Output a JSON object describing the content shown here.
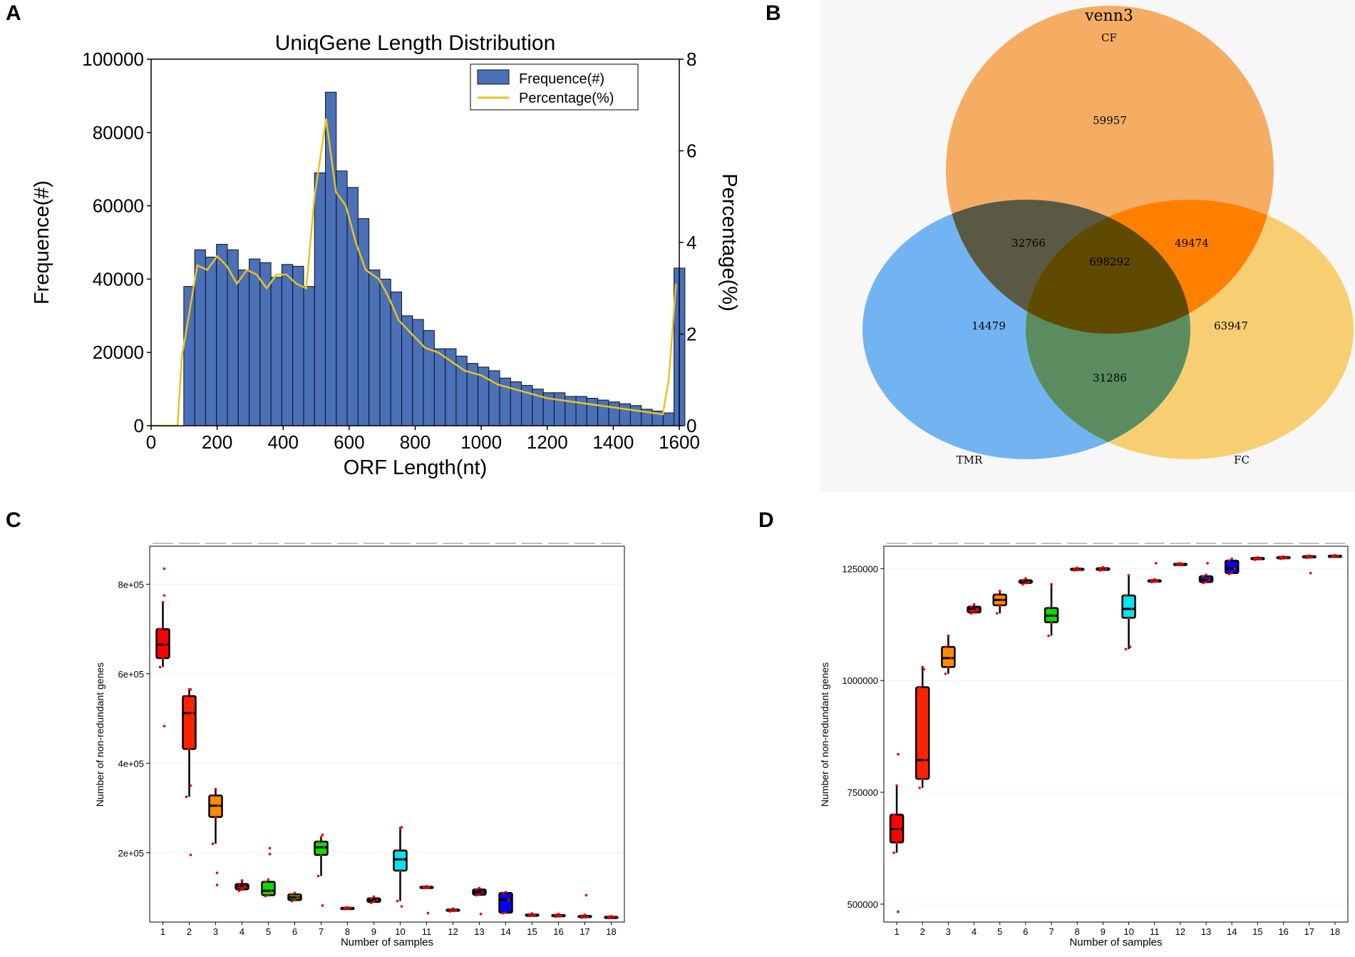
{
  "panels": {
    "A": "A",
    "B": "B",
    "C": "C",
    "D": "D"
  },
  "chart_data": [
    {
      "id": "A",
      "type": "bar",
      "title": "UniqGene Length Distribution",
      "xlabel": "ORF Length(nt)",
      "ylabel": "Frequence(#)",
      "y2label": "Percentage(%)",
      "xlim": [
        0,
        1600
      ],
      "ylim": [
        0,
        100000
      ],
      "y2lim": [
        0,
        8
      ],
      "xticks": [
        0,
        200,
        400,
        600,
        800,
        1000,
        1200,
        1400,
        1600
      ],
      "yticks": [
        0,
        20000,
        40000,
        60000,
        80000,
        100000
      ],
      "y2ticks": [
        0,
        2,
        4,
        6,
        8
      ],
      "bar_width": 33,
      "legend": [
        "Frequence(#)",
        "Percentage(%)"
      ],
      "legend_position": "top-right",
      "colors": {
        "bar": "#4a70b8",
        "line": "#e8c224"
      },
      "x": [
        0,
        33,
        66,
        99,
        132,
        165,
        198,
        231,
        264,
        297,
        330,
        363,
        396,
        429,
        462,
        495,
        528,
        561,
        594,
        627,
        660,
        693,
        726,
        759,
        792,
        825,
        858,
        891,
        924,
        957,
        990,
        1023,
        1056,
        1089,
        1122,
        1155,
        1188,
        1221,
        1254,
        1287,
        1320,
        1353,
        1386,
        1419,
        1452,
        1485,
        1518,
        1551,
        1584
      ],
      "values": [
        0,
        0,
        0,
        38000,
        48000,
        46000,
        49500,
        48000,
        42500,
        45500,
        44500,
        40500,
        44000,
        43500,
        38000,
        69000,
        91000,
        69500,
        65000,
        56500,
        42500,
        40000,
        36500,
        30000,
        29000,
        26000,
        21000,
        21000,
        19000,
        17000,
        16000,
        15000,
        13000,
        12000,
        11000,
        10000,
        9000,
        9000,
        8000,
        8000,
        7500,
        7000,
        6500,
        6000,
        5500,
        4500,
        4000,
        3500,
        43000
      ],
      "series": [
        {
          "name": "Percentage(%)",
          "x": [
            0,
            80,
            93,
            140,
            170,
            200,
            228,
            260,
            290,
            320,
            350,
            380,
            410,
            440,
            470,
            495,
            530,
            560,
            590,
            620,
            650,
            690,
            720,
            750,
            790,
            830,
            870,
            910,
            950,
            1000,
            1050,
            1100,
            1150,
            1200,
            1250,
            1300,
            1350,
            1400,
            1450,
            1500,
            1550,
            1568,
            1590
          ],
          "values": [
            0,
            0,
            1.5,
            3.5,
            3.4,
            3.7,
            3.5,
            3.1,
            3.4,
            3.3,
            3.0,
            3.3,
            3.3,
            3.1,
            3.0,
            5.0,
            6.7,
            5.1,
            4.8,
            4.0,
            3.4,
            3.2,
            2.8,
            2.3,
            2.0,
            1.7,
            1.6,
            1.4,
            1.2,
            1.1,
            0.9,
            0.8,
            0.7,
            0.6,
            0.55,
            0.5,
            0.45,
            0.4,
            0.35,
            0.3,
            0.25,
            1.0,
            3.1
          ]
        }
      ]
    },
    {
      "id": "B",
      "type": "venn",
      "title": "venn3",
      "sets": [
        "CF",
        "TMR",
        "FC"
      ],
      "colors": {
        "CF": "#f5a04a",
        "TMR": "#5aa8f0",
        "FC": "#f7c85a"
      },
      "regions": {
        "CF_only": "59957",
        "TMR_only": "14479",
        "FC_only": "63947",
        "CF_TMR": "32766",
        "CF_FC": "49474",
        "TMR_FC": "31286",
        "CF_TMR_FC": "698292"
      }
    },
    {
      "id": "C",
      "type": "box",
      "xlabel": "Number of samples",
      "ylabel": "Number of non-redundant genes",
      "categories": [
        "1",
        "2",
        "3",
        "4",
        "5",
        "6",
        "7",
        "8",
        "9",
        "10",
        "11",
        "12",
        "13",
        "14",
        "15",
        "16",
        "17",
        "18"
      ],
      "ylim": [
        45000,
        885000
      ],
      "yticks": [
        200000,
        400000,
        600000,
        800000
      ],
      "ytick_labels": [
        "2e+05",
        "4e+05",
        "6e+05",
        "8e+05"
      ],
      "box_colors": [
        "#ff0000",
        "#ff2200",
        "#ff8c00",
        "#ff0000",
        "#00e000",
        "#00d000",
        "#00e000",
        "#ff0000",
        "#ff0000",
        "#00e5ee",
        "#ff0000",
        "#ff0000",
        "#1a1adf",
        "#0000ff",
        "#ff0000",
        "#ff0000",
        "#ff0000",
        "#ff0000"
      ],
      "stats": [
        {
          "min": 615000,
          "q1": 635000,
          "median": 665000,
          "q3": 700000,
          "max": 760000
        },
        {
          "min": 325000,
          "q1": 432000,
          "median": 512000,
          "q3": 550000,
          "max": 565000
        },
        {
          "min": 220000,
          "q1": 280000,
          "median": 305000,
          "q3": 328000,
          "max": 342000
        },
        {
          "min": 115000,
          "q1": 118000,
          "median": 125000,
          "q3": 130000,
          "max": 138000
        },
        {
          "min": 103000,
          "q1": 105000,
          "median": 115000,
          "q3": 135000,
          "max": 140000
        },
        {
          "min": 92000,
          "q1": 94000,
          "median": 100000,
          "q3": 107000,
          "max": 110000
        },
        {
          "min": 148000,
          "q1": 195000,
          "median": 212000,
          "q3": 225000,
          "max": 235000
        },
        {
          "min": 74000,
          "q1": 75000,
          "median": 76000,
          "q3": 77000,
          "max": 78000
        },
        {
          "min": 88000,
          "q1": 90000,
          "median": 94000,
          "q3": 98000,
          "max": 102000
        },
        {
          "min": 92000,
          "q1": 160000,
          "median": 185000,
          "q3": 205000,
          "max": 255000
        },
        {
          "min": 121000,
          "q1": 122000,
          "median": 123000,
          "q3": 124000,
          "max": 125000
        },
        {
          "min": 69000,
          "q1": 70000,
          "median": 71000,
          "q3": 73000,
          "max": 75000
        },
        {
          "min": 105000,
          "q1": 106000,
          "median": 112000,
          "q3": 118000,
          "max": 121000
        },
        {
          "min": 65000,
          "q1": 66000,
          "median": 95000,
          "q3": 110000,
          "max": 112000
        },
        {
          "min": 59000,
          "q1": 60000,
          "median": 61000,
          "q3": 62000,
          "max": 64000
        },
        {
          "min": 57000,
          "q1": 58000,
          "median": 59000,
          "q3": 61000,
          "max": 63000
        },
        {
          "min": 55000,
          "q1": 56000,
          "median": 57000,
          "q3": 59000,
          "max": 61000
        },
        {
          "min": 54000,
          "q1": 55000,
          "median": 56000,
          "q3": 57000,
          "max": 58000
        }
      ],
      "outliers": [
        [
          835000,
          483000,
          775000
        ],
        [
          565000,
          195000,
          350000
        ],
        [
          128000,
          155000
        ],
        [],
        [
          210000,
          197000
        ],
        [],
        [
          82000,
          240000
        ],
        [],
        [],
        [
          80000,
          257000
        ],
        [
          65000
        ],
        [],
        [
          63000
        ],
        [],
        [],
        [],
        [
          105000
        ],
        []
      ]
    },
    {
      "id": "D",
      "type": "box",
      "xlabel": "Number of samples",
      "ylabel": "Number of non-redundant genes",
      "categories": [
        "1",
        "2",
        "3",
        "4",
        "5",
        "6",
        "7",
        "8",
        "9",
        "10",
        "11",
        "12",
        "13",
        "14",
        "15",
        "16",
        "17",
        "18"
      ],
      "ylim": [
        460000,
        1300000
      ],
      "yticks": [
        500000,
        750000,
        1000000,
        1250000
      ],
      "ytick_labels": [
        "500000",
        "750000",
        "1000000",
        "1250000"
      ],
      "box_colors": [
        "#ff0000",
        "#ff2200",
        "#ff8c00",
        "#ff0000",
        "#ff8c00",
        "#ff0000",
        "#00e000",
        "#ff0000",
        "#ff0000",
        "#00e5ee",
        "#ff0000",
        "#ff0000",
        "#1a1adf",
        "#0000ff",
        "#ff0000",
        "#ff0000",
        "#ff0000",
        "#ff0000"
      ],
      "stats": [
        {
          "min": 615000,
          "q1": 638000,
          "median": 668000,
          "q3": 700000,
          "max": 765000
        },
        {
          "min": 760000,
          "q1": 780000,
          "median": 822000,
          "q3": 985000,
          "max": 1030000
        },
        {
          "min": 1015000,
          "q1": 1030000,
          "median": 1050000,
          "q3": 1075000,
          "max": 1100000
        },
        {
          "min": 1150000,
          "q1": 1152000,
          "median": 1160000,
          "q3": 1165000,
          "max": 1170000
        },
        {
          "min": 1150000,
          "q1": 1168000,
          "median": 1180000,
          "q3": 1192000,
          "max": 1200000
        },
        {
          "min": 1215000,
          "q1": 1218000,
          "median": 1220000,
          "q3": 1224000,
          "max": 1228000
        },
        {
          "min": 1100000,
          "q1": 1130000,
          "median": 1145000,
          "q3": 1162000,
          "max": 1215000
        },
        {
          "min": 1246000,
          "q1": 1247000,
          "median": 1248000,
          "q3": 1250000,
          "max": 1252000
        },
        {
          "min": 1246000,
          "q1": 1247000,
          "median": 1249000,
          "q3": 1251000,
          "max": 1253000
        },
        {
          "min": 1070000,
          "q1": 1140000,
          "median": 1160000,
          "q3": 1190000,
          "max": 1235000
        },
        {
          "min": 1220000,
          "q1": 1221000,
          "median": 1222000,
          "q3": 1224000,
          "max": 1226000
        },
        {
          "min": 1258000,
          "q1": 1259000,
          "median": 1260000,
          "q3": 1261000,
          "max": 1262000
        },
        {
          "min": 1218000,
          "q1": 1220000,
          "median": 1225000,
          "q3": 1233000,
          "max": 1236000
        },
        {
          "min": 1238000,
          "q1": 1240000,
          "median": 1250000,
          "q3": 1268000,
          "max": 1272000
        },
        {
          "min": 1270000,
          "q1": 1271000,
          "median": 1272000,
          "q3": 1274000,
          "max": 1275000
        },
        {
          "min": 1272000,
          "q1": 1273000,
          "median": 1274000,
          "q3": 1276000,
          "max": 1277000
        },
        {
          "min": 1274000,
          "q1": 1275000,
          "median": 1276000,
          "q3": 1278000,
          "max": 1279000
        },
        {
          "min": 1276000,
          "q1": 1277000,
          "median": 1278000,
          "q3": 1279000,
          "max": 1280000
        }
      ],
      "outliers": [
        [
          483000,
          835000
        ],
        [
          1025000
        ],
        [],
        [],
        [],
        [],
        [],
        [],
        [],
        [
          1075000
        ],
        [
          1262000
        ],
        [],
        [
          1262000
        ],
        [],
        [],
        [],
        [
          1240000
        ],
        []
      ]
    }
  ]
}
